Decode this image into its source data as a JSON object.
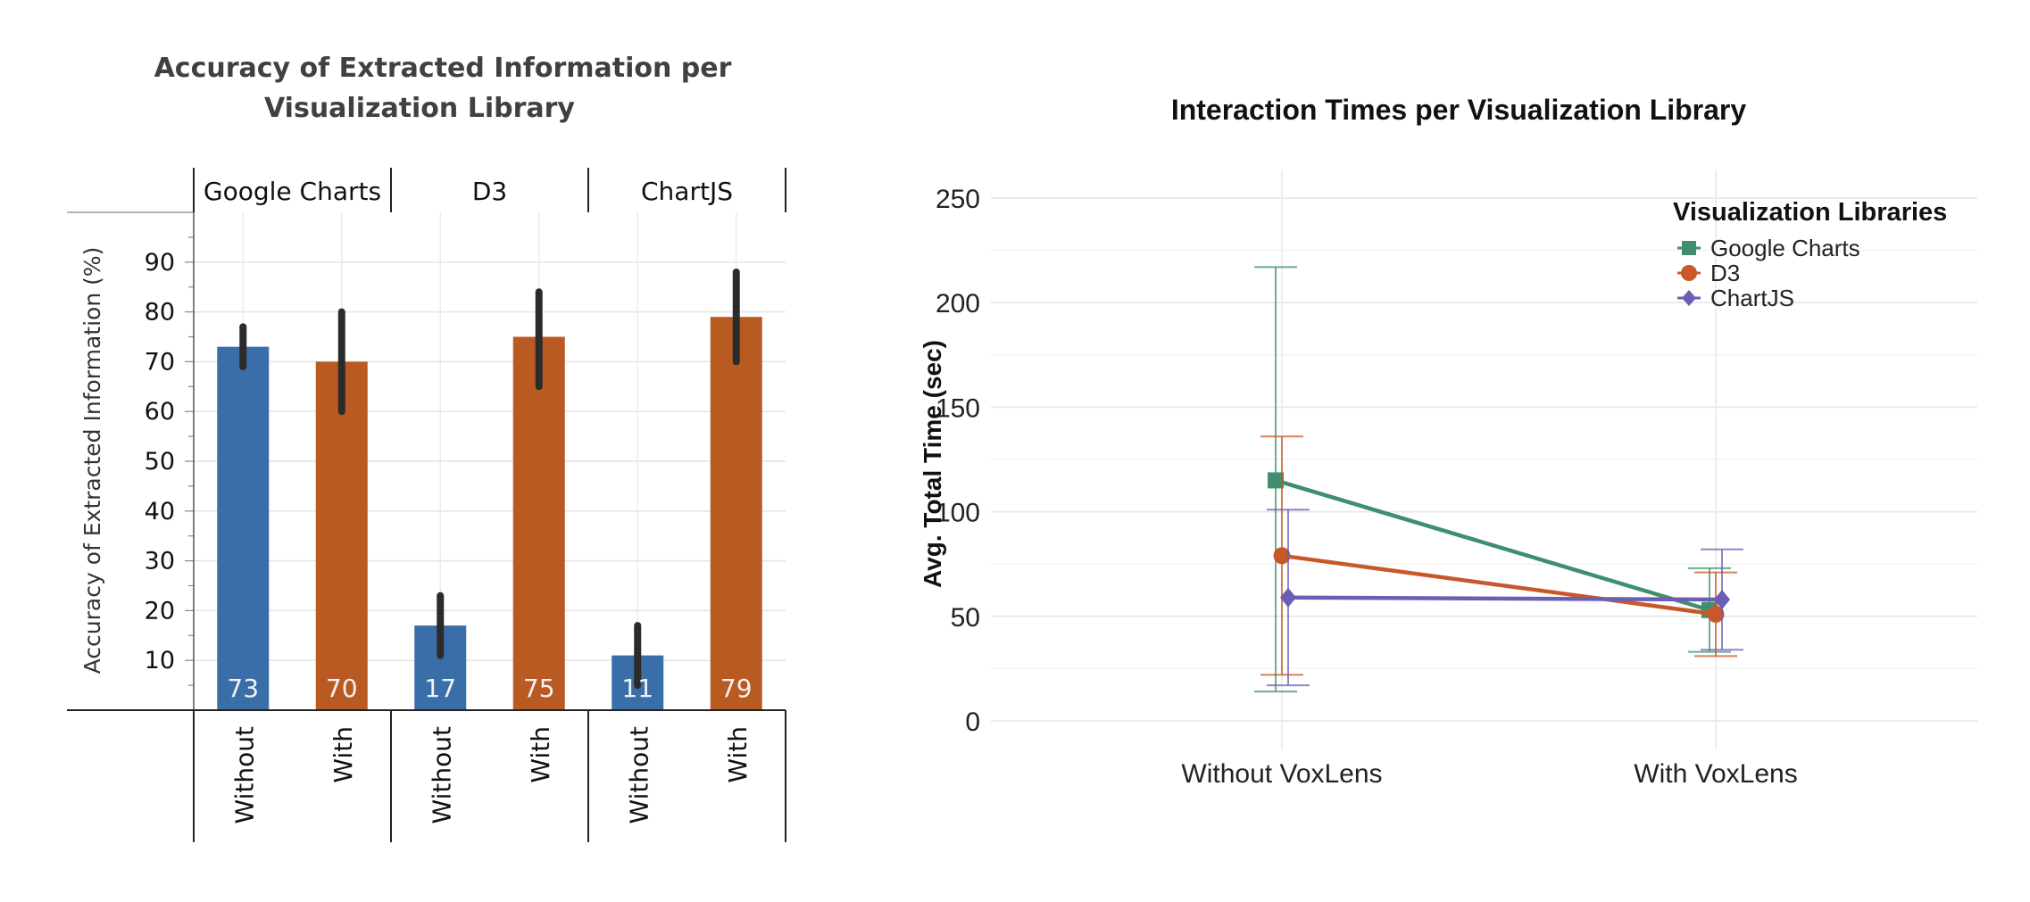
{
  "chart_data": [
    {
      "type": "bar",
      "title": "Accuracy of Extracted Information per Visualization Library",
      "title_lines": [
        "Accuracy of Extracted Information per",
        "Visualization Library"
      ],
      "ylabel": "Accuracy of Extracted Information (%)",
      "ylim": [
        0,
        100
      ],
      "yticks": [
        10,
        20,
        30,
        40,
        50,
        60,
        70,
        80,
        90
      ],
      "grid": true,
      "groups": [
        {
          "name": "Google Charts",
          "bars": [
            {
              "label": "Without",
              "value": 73,
              "value_label": "73",
              "err_low": 69,
              "err_high": 77,
              "color": "#3a6ea8"
            },
            {
              "label": "With",
              "value": 70,
              "value_label": "70",
              "err_low": 60,
              "err_high": 80,
              "color": "#b85a21"
            }
          ]
        },
        {
          "name": "D3",
          "bars": [
            {
              "label": "Without",
              "value": 17,
              "value_label": "17",
              "err_low": 11,
              "err_high": 23,
              "color": "#3a6ea8"
            },
            {
              "label": "With",
              "value": 75,
              "value_label": "75",
              "err_low": 65,
              "err_high": 84,
              "color": "#b85a21"
            }
          ]
        },
        {
          "name": "ChartJS",
          "bars": [
            {
              "label": "Without",
              "value": 11,
              "value_label": "11",
              "err_low": 5,
              "err_high": 17,
              "color": "#3a6ea8"
            },
            {
              "label": "With",
              "value": 79,
              "value_label": "79",
              "err_low": 70,
              "err_high": 88,
              "color": "#b85a21"
            }
          ]
        }
      ]
    },
    {
      "type": "line",
      "title": "Interaction Times per Visualization Library",
      "xlabel": "",
      "ylabel": "Avg. Total Time (sec)",
      "ylim": [
        0,
        250
      ],
      "yticks": [
        0,
        50,
        100,
        150,
        200,
        250
      ],
      "categories": [
        "Without VoxLens",
        "With VoxLens"
      ],
      "grid": true,
      "legend_title": "Visualization Libraries",
      "legend_position": "top-right",
      "series": [
        {
          "name": "Google Charts",
          "color": "#3f8f6e",
          "marker": "square",
          "values": [
            115,
            53
          ],
          "err_low": [
            14,
            33
          ],
          "err_high": [
            217,
            73
          ]
        },
        {
          "name": "D3",
          "color": "#c8582a",
          "marker": "circle",
          "values": [
            79,
            51
          ],
          "err_low": [
            22,
            31
          ],
          "err_high": [
            136,
            71
          ]
        },
        {
          "name": "ChartJS",
          "color": "#6a5fb5",
          "marker": "diamond",
          "values": [
            59,
            58
          ],
          "err_low": [
            17,
            34
          ],
          "err_high": [
            101,
            82
          ]
        }
      ]
    }
  ]
}
